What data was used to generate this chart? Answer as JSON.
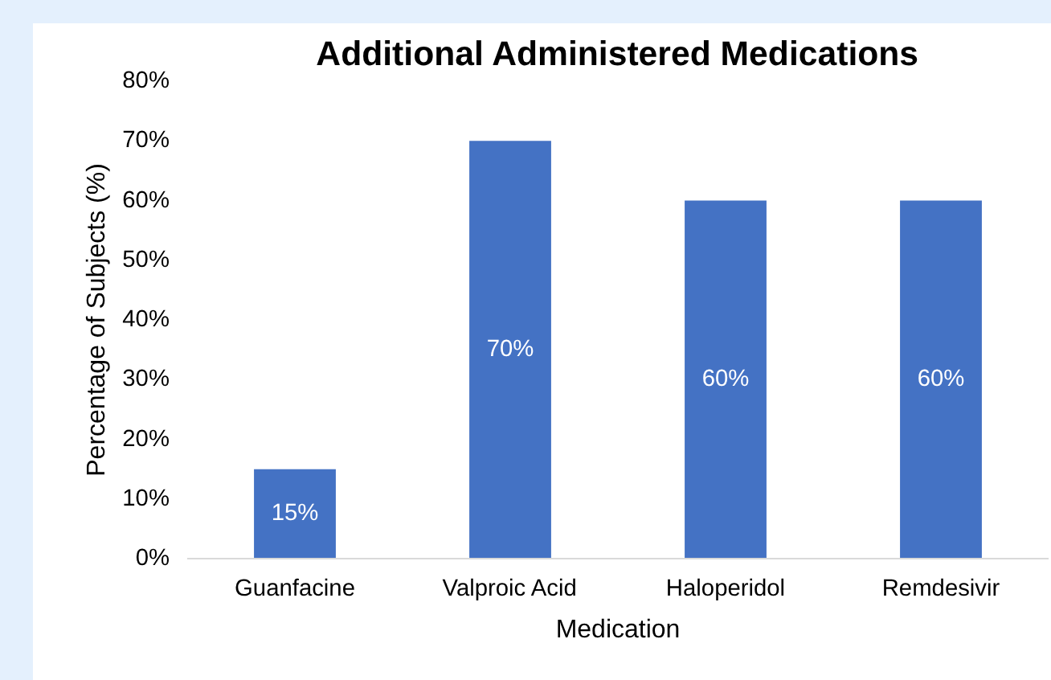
{
  "chart_data": {
    "type": "bar",
    "title": "Additional Administered Medications",
    "xlabel": "Medication",
    "ylabel": "Percentage of Subjects (%)",
    "categories": [
      "Guanfacine",
      "Valproic Acid",
      "Haloperidol",
      "Remdesivir"
    ],
    "values": [
      15,
      70,
      60,
      60
    ],
    "color": "#4472c4",
    "value_labels": [
      "15%",
      "70%",
      "60%",
      "60%"
    ],
    "ylim": [
      0,
      80
    ],
    "yticks": [
      {
        "value": 0,
        "label": "0%"
      },
      {
        "value": 10,
        "label": "10%"
      },
      {
        "value": 20,
        "label": "20%"
      },
      {
        "value": 30,
        "label": "30%"
      },
      {
        "value": 40,
        "label": "40%"
      },
      {
        "value": 50,
        "label": "50%"
      },
      {
        "value": 60,
        "label": "60%"
      },
      {
        "value": 70,
        "label": "70%"
      },
      {
        "value": 80,
        "label": "80%"
      }
    ],
    "grid": false
  }
}
